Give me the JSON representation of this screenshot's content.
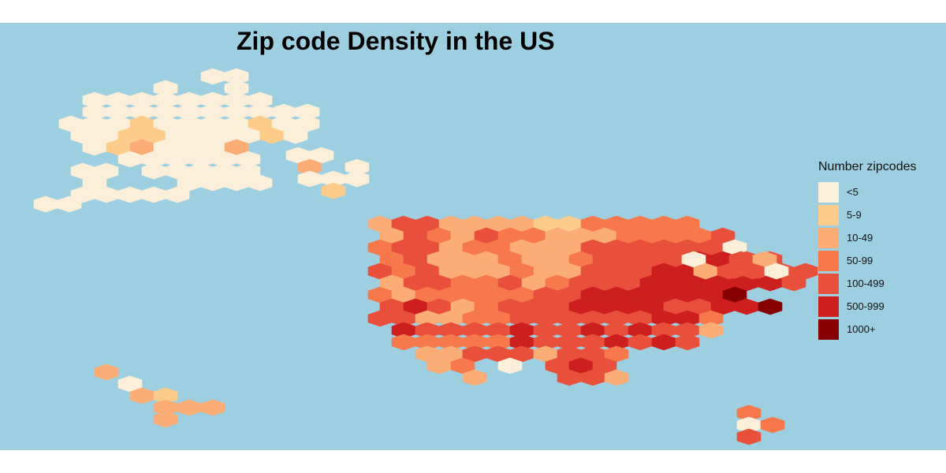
{
  "title": "Zip code Density in the US",
  "colors": {
    "ocean": "#9ecfe0",
    "page_background": "#ffffff"
  },
  "legend": {
    "title": "Number zipcodes",
    "items": [
      {
        "label": "<5",
        "color": "#fcefd9"
      },
      {
        "label": "5-9",
        "color": "#fdcc8a"
      },
      {
        "label": "10-49",
        "color": "#fcad76"
      },
      {
        "label": "50-99",
        "color": "#f7784b"
      },
      {
        "label": "100-499",
        "color": "#e9503b"
      },
      {
        "label": "500-999",
        "color": "#cd1f1f"
      },
      {
        "label": "1000+",
        "color": "#860000"
      }
    ]
  }
}
